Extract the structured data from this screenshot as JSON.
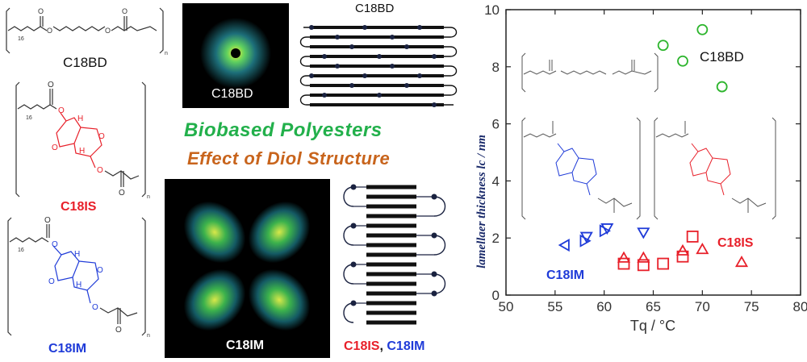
{
  "labels": {
    "c18bd_left": "C18BD",
    "c18is_left": "C18IS",
    "c18im_left": "C18IM",
    "saxs_top": "C18BD",
    "saxs_bottom": "C18IM",
    "chain_top": "C18BD",
    "chain_bottom_is": "C18IS",
    "chain_bottom_sep": ",",
    "chain_bottom_im": "C18IM",
    "subscript_n": "n",
    "subscript_16": "16",
    "atom_o": "O",
    "atom_h": "H",
    "title_line1": "Biobased Polyesters",
    "title_line2": "Effect of Diol Structure"
  },
  "chart_data": {
    "type": "scatter",
    "xlabel": "Tq / °C",
    "ylabel": "lamellaer thickness lc / nm",
    "xlim": [
      50,
      80
    ],
    "ylim": [
      0,
      10
    ],
    "xticks": [
      50,
      55,
      60,
      65,
      70,
      75,
      80
    ],
    "yticks": [
      0,
      2,
      4,
      6,
      8,
      10
    ],
    "annotations": {
      "c18bd": "C18BD",
      "c18is": "C18IS",
      "c18im": "C18IM"
    },
    "series": [
      {
        "name": "C18BD",
        "marker": "circle",
        "color": "#2db52d",
        "points": [
          [
            66,
            8.75
          ],
          [
            68,
            8.2
          ],
          [
            70,
            9.3
          ],
          [
            72,
            7.3
          ]
        ]
      },
      {
        "name": "C18IM",
        "marker": "triangle-mixed",
        "color": "#1f3bd8",
        "points": [
          {
            "x": 56.0,
            "y": 1.75,
            "m": "tri-left"
          },
          {
            "x": 58.0,
            "y": 1.9,
            "m": "tri-right"
          },
          {
            "x": 58.2,
            "y": 2.05,
            "m": "tri-down"
          },
          {
            "x": 60.0,
            "y": 2.25,
            "m": "tri-right"
          },
          {
            "x": 60.3,
            "y": 2.35,
            "m": "tri-down"
          },
          {
            "x": 64.0,
            "y": 2.2,
            "m": "tri-down"
          }
        ]
      },
      {
        "name": "C18IS",
        "marker": "mixed",
        "color": "#e8202a",
        "points": [
          {
            "x": 62.0,
            "y": 1.1,
            "m": "square"
          },
          {
            "x": 62.0,
            "y": 1.3,
            "m": "tri-up"
          },
          {
            "x": 64.0,
            "y": 1.05,
            "m": "square"
          },
          {
            "x": 64.0,
            "y": 1.3,
            "m": "tri-up"
          },
          {
            "x": 66.0,
            "y": 1.1,
            "m": "square"
          },
          {
            "x": 68.0,
            "y": 1.35,
            "m": "square"
          },
          {
            "x": 68.0,
            "y": 1.55,
            "m": "tri-up"
          },
          {
            "x": 69.0,
            "y": 2.05,
            "m": "square"
          },
          {
            "x": 70.0,
            "y": 1.6,
            "m": "tri-up"
          },
          {
            "x": 74.0,
            "y": 1.15,
            "m": "tri-up"
          }
        ]
      }
    ]
  }
}
